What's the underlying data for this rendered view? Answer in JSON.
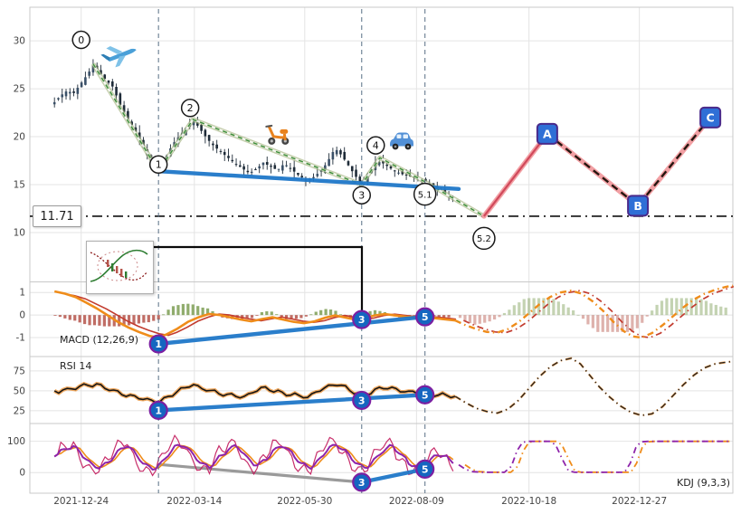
{
  "price_callout": {
    "label": "11.71"
  },
  "vlines": [
    18.3,
    47.2,
    56.2
  ],
  "x_axis": {
    "ticks": [
      {
        "label": "2021-12-24",
        "pct": 7.3
      },
      {
        "label": "2022-03-14",
        "pct": 23.4
      },
      {
        "label": "2022-05-30",
        "pct": 39.1
      },
      {
        "label": "2022-08-09",
        "pct": 55.0
      },
      {
        "label": "2022-10-18",
        "pct": 71.0
      },
      {
        "label": "2022-12-27",
        "pct": 86.7
      }
    ]
  },
  "colors": {
    "candle": "#1e2b38",
    "candle_up": "#3a5068",
    "trendline": "#1f77c8",
    "gray_trendline": "#9a9a9a",
    "marker_fill": "#1566c0",
    "marker_ring": "#7b1fa2",
    "wave_dash": "#3f8f3a",
    "wave_glow": "#9fae77",
    "projection_underlay": "#f2a0a4",
    "projection_impulse": "#d1495b",
    "projection_dash": "#26160f",
    "macd_line": "#ef8c1a",
    "signal_line": "#c23b2e",
    "hist_pos": "#7d9e54",
    "hist_neg": "#b5544a",
    "rsi_line": "#151515",
    "rsi_halo": "#f0a150",
    "kdj_k": "#8e24aa",
    "kdj_d": "#ef8c1a",
    "kdj_j": "#c2185b",
    "support_line": "#111111",
    "vline": "#5b7287",
    "abc_fill": "#2f6fd6",
    "abc_ring": "#4a2a8a"
  },
  "chart_data": [
    {
      "panel": "price",
      "type": "candlestick",
      "ylim": [
        5,
        33.5
      ],
      "yticks": [
        30,
        25,
        20,
        15,
        10
      ],
      "hline": {
        "value": 11.71,
        "label": "11.71"
      },
      "path": [
        [
          3.5,
          23.6
        ],
        [
          4.4,
          24.3
        ],
        [
          5.3,
          24.8
        ],
        [
          6.2,
          24.5
        ],
        [
          7.1,
          25.4
        ],
        [
          8.0,
          26.3
        ],
        [
          9.0,
          27.4
        ],
        [
          9.8,
          26.8
        ],
        [
          10.8,
          25.9
        ],
        [
          11.8,
          25.2
        ],
        [
          12.8,
          23.4
        ],
        [
          13.8,
          22.0
        ],
        [
          14.8,
          20.9
        ],
        [
          15.8,
          19.4
        ],
        [
          16.8,
          17.9
        ],
        [
          17.6,
          16.9
        ],
        [
          18.3,
          16.4
        ],
        [
          19.3,
          17.8
        ],
        [
          20.3,
          19.2
        ],
        [
          21.3,
          20.1
        ],
        [
          22.3,
          21.0
        ],
        [
          23.2,
          21.8
        ],
        [
          24.2,
          20.8
        ],
        [
          25.2,
          19.8
        ],
        [
          26.2,
          19.0
        ],
        [
          27.2,
          18.4
        ],
        [
          28.2,
          17.8
        ],
        [
          29.2,
          17.2
        ],
        [
          30.2,
          16.7
        ],
        [
          31.2,
          16.2
        ],
        [
          32.2,
          16.6
        ],
        [
          33.2,
          17.3
        ],
        [
          34.2,
          16.9
        ],
        [
          35.2,
          16.5
        ],
        [
          36.2,
          17.2
        ],
        [
          37.2,
          16.6
        ],
        [
          38.2,
          16.0
        ],
        [
          39.2,
          15.5
        ],
        [
          40.2,
          15.7
        ],
        [
          41.2,
          16.3
        ],
        [
          42.2,
          17.2
        ],
        [
          43.4,
          18.8
        ],
        [
          44.4,
          18.0
        ],
        [
          45.4,
          16.9
        ],
        [
          46.3,
          15.9
        ],
        [
          47.2,
          15.1
        ],
        [
          48.2,
          16.3
        ],
        [
          49.3,
          17.5
        ],
        [
          50.3,
          17.2
        ],
        [
          51.3,
          16.7
        ],
        [
          52.3,
          16.3
        ],
        [
          53.3,
          16.0
        ],
        [
          54.3,
          15.8
        ],
        [
          55.3,
          15.6
        ],
        [
          56.2,
          15.3
        ],
        [
          57.2,
          14.9
        ],
        [
          58.2,
          14.5
        ],
        [
          59.2,
          14.0
        ],
        [
          60.2,
          13.7
        ]
      ],
      "wave": {
        "points": [
          [
            9.0,
            27.6
          ],
          [
            18.3,
            16.4
          ],
          [
            23.2,
            21.8
          ],
          [
            47.2,
            15.0
          ],
          [
            49.8,
            17.8
          ],
          [
            56.2,
            15.3
          ],
          [
            64.6,
            11.71
          ]
        ],
        "annotations": [
          {
            "label": "0",
            "pct": 7.3,
            "value": 30.1
          },
          {
            "label": "1",
            "pct": 18.3,
            "value": 17.1
          },
          {
            "label": "2",
            "pct": 22.8,
            "value": 23.0
          },
          {
            "label": "3",
            "pct": 47.2,
            "value": 13.9
          },
          {
            "label": "4",
            "pct": 49.2,
            "value": 19.1
          },
          {
            "label": "5.1",
            "pct": 56.2,
            "value": 14.0
          },
          {
            "label": "5.2",
            "pct": 64.6,
            "value": 9.4
          }
        ]
      },
      "projection": {
        "points": [
          [
            64.6,
            11.71
          ],
          [
            73.6,
            20.3
          ],
          [
            86.5,
            12.8
          ],
          [
            96.8,
            22.0
          ]
        ],
        "labels": [
          "A",
          "B",
          "C"
        ]
      },
      "trendline": [
        [
          18.3,
          16.4
        ],
        [
          61.0,
          14.55
        ]
      ],
      "icons": [
        {
          "name": "airplane-icon",
          "kind": "airplane",
          "pct": 12.9,
          "value": 28.6
        },
        {
          "name": "scooter-icon",
          "kind": "scooter",
          "pct": 35.3,
          "value": 20.2
        },
        {
          "name": "suv-icon",
          "kind": "suv",
          "pct": 52.9,
          "value": 19.3
        }
      ]
    },
    {
      "panel": "macd",
      "type": "line",
      "label": "MACD (12,26,9)",
      "ylim": [
        -1.8,
        1.45
      ],
      "yticks": [
        1,
        0,
        -1
      ],
      "macd": [
        [
          3.5,
          1.05
        ],
        [
          5,
          0.95
        ],
        [
          6.5,
          0.8
        ],
        [
          8,
          0.55
        ],
        [
          9.5,
          0.3
        ],
        [
          11,
          0.0
        ],
        [
          12.5,
          -0.3
        ],
        [
          14,
          -0.55
        ],
        [
          15.5,
          -0.75
        ],
        [
          17,
          -0.92
        ],
        [
          18.3,
          -1.0
        ],
        [
          19.5,
          -0.85
        ],
        [
          21,
          -0.6
        ],
        [
          22.5,
          -0.3
        ],
        [
          24,
          -0.1
        ],
        [
          25.5,
          0.05
        ],
        [
          27,
          0.0
        ],
        [
          28.5,
          -0.1
        ],
        [
          30,
          -0.2
        ],
        [
          31.5,
          -0.28
        ],
        [
          33,
          -0.18
        ],
        [
          34.5,
          -0.1
        ],
        [
          36,
          -0.2
        ],
        [
          37.5,
          -0.3
        ],
        [
          39,
          -0.36
        ],
        [
          40.5,
          -0.28
        ],
        [
          42,
          -0.12
        ],
        [
          43.4,
          -0.02
        ],
        [
          45,
          -0.12
        ],
        [
          46.3,
          -0.2
        ],
        [
          47.5,
          -0.15
        ],
        [
          49,
          -0.02
        ],
        [
          50.5,
          0.04
        ],
        [
          52,
          -0.02
        ],
        [
          53.5,
          -0.08
        ],
        [
          55,
          -0.1
        ],
        [
          56.5,
          -0.1
        ],
        [
          58,
          -0.15
        ],
        [
          59.3,
          -0.2
        ],
        [
          60.5,
          -0.24
        ]
      ],
      "macd_proj": [
        [
          60.5,
          -0.24
        ],
        [
          62,
          -0.45
        ],
        [
          63.5,
          -0.62
        ],
        [
          65,
          -0.75
        ],
        [
          66.5,
          -0.78
        ],
        [
          68,
          -0.62
        ],
        [
          69.5,
          -0.32
        ],
        [
          71,
          0.08
        ],
        [
          72.5,
          0.48
        ],
        [
          74,
          0.8
        ],
        [
          75.5,
          1.0
        ],
        [
          77,
          1.08
        ],
        [
          78.5,
          0.95
        ],
        [
          80,
          0.62
        ],
        [
          81.5,
          0.2
        ],
        [
          83,
          -0.3
        ],
        [
          84.5,
          -0.72
        ],
        [
          85.8,
          -0.95
        ],
        [
          87,
          -1.0
        ],
        [
          88.5,
          -0.8
        ],
        [
          90,
          -0.45
        ],
        [
          91.5,
          -0.05
        ],
        [
          93,
          0.35
        ],
        [
          94.5,
          0.7
        ],
        [
          96,
          0.95
        ],
        [
          97.5,
          1.12
        ],
        [
          99,
          1.25
        ],
        [
          100,
          1.3
        ]
      ],
      "markers": [
        {
          "label": "1",
          "pct": 18.3,
          "value": -1.28
        },
        {
          "label": "3",
          "pct": 47.2,
          "value": -0.2
        },
        {
          "label": "5",
          "pct": 56.2,
          "value": -0.08
        }
      ],
      "trendline": [
        [
          18.3,
          -1.28
        ],
        [
          56.2,
          -0.08
        ]
      ]
    },
    {
      "panel": "rsi",
      "type": "line",
      "label": "RSI 14",
      "ylim": [
        10,
        92
      ],
      "yticks": [
        75,
        50,
        25
      ],
      "rsi": [
        [
          3.5,
          50
        ],
        [
          5,
          51
        ],
        [
          6.5,
          54
        ],
        [
          8,
          57
        ],
        [
          9.5,
          58
        ],
        [
          11,
          53
        ],
        [
          12.5,
          48
        ],
        [
          14,
          44
        ],
        [
          15.5,
          41
        ],
        [
          17,
          38
        ],
        [
          18.3,
          36
        ],
        [
          19.8,
          43
        ],
        [
          21.3,
          51
        ],
        [
          23.2,
          58
        ],
        [
          24.5,
          53
        ],
        [
          26,
          49
        ],
        [
          27.5,
          46
        ],
        [
          29,
          44
        ],
        [
          30.5,
          42
        ],
        [
          32,
          50
        ],
        [
          33.5,
          54
        ],
        [
          35,
          49
        ],
        [
          36.5,
          46
        ],
        [
          38,
          44
        ],
        [
          39.5,
          42
        ],
        [
          41,
          50
        ],
        [
          42.5,
          56
        ],
        [
          43.8,
          59
        ],
        [
          45,
          53
        ],
        [
          46.3,
          47
        ],
        [
          47.5,
          44
        ],
        [
          49,
          51
        ],
        [
          50.5,
          55
        ],
        [
          52,
          52
        ],
        [
          53.5,
          49
        ],
        [
          55,
          48
        ],
        [
          56.5,
          47
        ],
        [
          58,
          45
        ],
        [
          59.3,
          44
        ],
        [
          60.5,
          43
        ]
      ],
      "rsi_proj": [
        [
          60.5,
          43
        ],
        [
          62,
          35
        ],
        [
          63.5,
          28
        ],
        [
          65,
          24
        ],
        [
          66.5,
          22
        ],
        [
          68,
          27
        ],
        [
          69.5,
          38
        ],
        [
          71,
          53
        ],
        [
          72.5,
          68
        ],
        [
          74,
          80
        ],
        [
          75.5,
          88
        ],
        [
          77,
          91
        ],
        [
          78.3,
          84
        ],
        [
          79.6,
          70
        ],
        [
          81,
          55
        ],
        [
          82.5,
          42
        ],
        [
          84,
          31
        ],
        [
          85.5,
          23
        ],
        [
          87,
          19
        ],
        [
          88.5,
          21
        ],
        [
          90,
          30
        ],
        [
          91.5,
          44
        ],
        [
          93,
          58
        ],
        [
          94.5,
          70
        ],
        [
          96,
          79
        ],
        [
          97.5,
          84
        ],
        [
          99,
          86
        ],
        [
          100,
          87
        ]
      ],
      "markers": [
        {
          "label": "1",
          "pct": 18.3,
          "value": 25.5
        },
        {
          "label": "3",
          "pct": 47.2,
          "value": 38
        },
        {
          "label": "5",
          "pct": 56.2,
          "value": 45
        }
      ],
      "trendline": [
        [
          18.3,
          25.5
        ],
        [
          56.2,
          45
        ]
      ]
    },
    {
      "panel": "kdj",
      "type": "line",
      "label": "KDJ (9,3,3)",
      "ylim": [
        -66,
        154
      ],
      "yticks": [
        100,
        0
      ],
      "k": [
        [
          3.5,
          55
        ],
        [
          4.8,
          72
        ],
        [
          6.1,
          85
        ],
        [
          7.4,
          60
        ],
        [
          8.7,
          25
        ],
        [
          10,
          15
        ],
        [
          11.3,
          35
        ],
        [
          12.6,
          70
        ],
        [
          13.9,
          88
        ],
        [
          15.2,
          55
        ],
        [
          16.5,
          20
        ],
        [
          17.8,
          12
        ],
        [
          19.1,
          40
        ],
        [
          20.4,
          78
        ],
        [
          21.7,
          90
        ],
        [
          23,
          65
        ],
        [
          24.3,
          30
        ],
        [
          25.6,
          18
        ],
        [
          26.9,
          45
        ],
        [
          28.2,
          75
        ],
        [
          29.5,
          85
        ],
        [
          30.8,
          50
        ],
        [
          32.1,
          22
        ],
        [
          33.4,
          38
        ],
        [
          34.7,
          72
        ],
        [
          36,
          88
        ],
        [
          37.3,
          60
        ],
        [
          38.6,
          28
        ],
        [
          39.9,
          15
        ],
        [
          41.2,
          42
        ],
        [
          42.5,
          80
        ],
        [
          43.8,
          90
        ],
        [
          45.1,
          62
        ],
        [
          46.4,
          30
        ],
        [
          47.7,
          14
        ],
        [
          49,
          38
        ],
        [
          50.3,
          72
        ],
        [
          51.6,
          86
        ],
        [
          52.9,
          55
        ],
        [
          54.2,
          25
        ],
        [
          55.5,
          15
        ],
        [
          56.8,
          35
        ],
        [
          58.1,
          60
        ],
        [
          59.4,
          45
        ],
        [
          60.5,
          30
        ]
      ],
      "k_proj": [
        [
          61,
          25
        ],
        [
          62,
          10
        ],
        [
          63,
          3
        ],
        [
          64.5,
          1
        ],
        [
          66,
          1
        ],
        [
          67.5,
          1
        ],
        [
          68.5,
          20
        ],
        [
          69.3,
          70
        ],
        [
          70.1,
          97
        ],
        [
          71,
          100
        ],
        [
          72.5,
          100
        ],
        [
          74,
          100
        ],
        [
          74.8,
          88
        ],
        [
          75.8,
          40
        ],
        [
          76.6,
          6
        ],
        [
          77.5,
          1
        ],
        [
          79,
          1
        ],
        [
          81,
          1
        ],
        [
          83,
          1
        ],
        [
          84.6,
          1
        ],
        [
          85.4,
          30
        ],
        [
          86.2,
          80
        ],
        [
          86.9,
          98
        ],
        [
          88,
          100
        ],
        [
          90,
          100
        ],
        [
          92,
          100
        ],
        [
          94,
          100
        ],
        [
          96,
          100
        ],
        [
          98,
          100
        ],
        [
          99.6,
          100
        ]
      ],
      "markers": [
        {
          "label": "3",
          "pct": 47.2,
          "value": -31
        },
        {
          "label": "5",
          "pct": 56.2,
          "value": 11
        }
      ],
      "trendline_gray": [
        [
          18.3,
          26
        ],
        [
          47.2,
          -31
        ]
      ],
      "trendline": [
        [
          47.2,
          -31
        ],
        [
          56.2,
          11
        ]
      ]
    }
  ]
}
